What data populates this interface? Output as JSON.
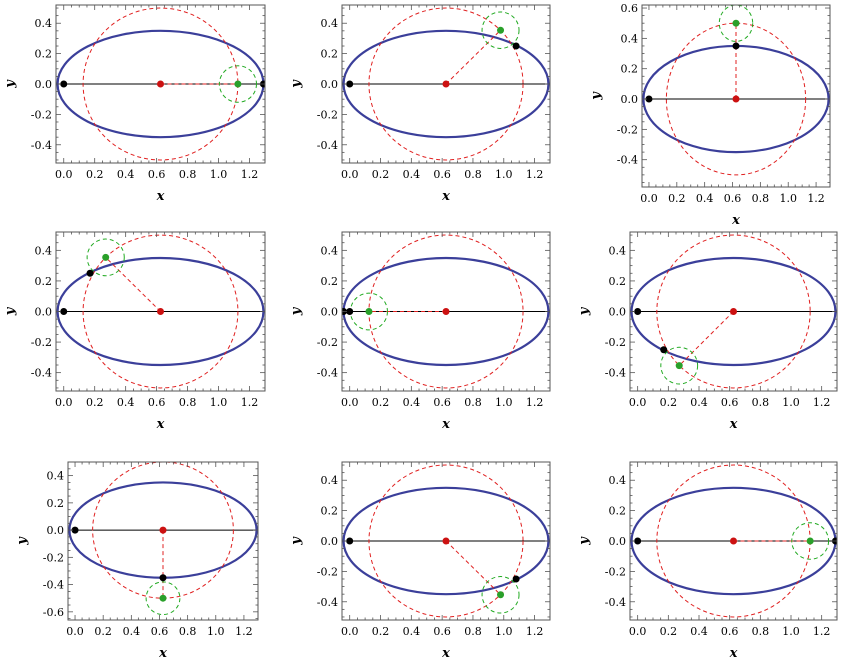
{
  "chart_data": {
    "type": "scatter",
    "description_of_content": "",
    "xlabel": "x",
    "ylabel": "y",
    "ellipse": {
      "center": [
        0.625,
        0.0
      ],
      "semi_axis_x": 0.665,
      "semi_axis_y": 0.35
    },
    "large_circle": {
      "center": [
        0.625,
        0.0
      ],
      "radius": 0.5
    },
    "small_circle_radius": 0.12,
    "colors": {
      "ellipse": "#3b3f9a",
      "large_circle": "#e02020",
      "small_circle": "#22aa22",
      "center_point": "#cc1111",
      "body_point": "#2aa02a",
      "axis_point": "#000000",
      "axis_line": "#000000"
    },
    "panels": [
      {
        "xlim": [
          -0.05,
          1.3
        ],
        "ylim": [
          -0.52,
          0.52
        ],
        "xticks": [
          "0.0",
          "0.2",
          "0.4",
          "0.6",
          "0.8",
          "1.0",
          "1.2"
        ],
        "yticks": [
          "-0.4",
          "-0.2",
          "0.0",
          "0.2",
          "0.4"
        ],
        "yvals": [
          -0.4,
          -0.2,
          0.0,
          0.2,
          0.4
        ],
        "green_point": [
          1.125,
          0.0
        ],
        "black_points": [
          [
            0.0,
            0.0
          ],
          [
            1.29,
            0.0
          ]
        ]
      },
      {
        "xlim": [
          -0.05,
          1.3
        ],
        "ylim": [
          -0.52,
          0.52
        ],
        "xticks": [
          "0.0",
          "0.2",
          "0.4",
          "0.6",
          "0.8",
          "1.0",
          "1.2"
        ],
        "yticks": [
          "-0.4",
          "-0.2",
          "0.0",
          "0.2",
          "0.4"
        ],
        "yvals": [
          -0.4,
          -0.2,
          0.0,
          0.2,
          0.4
        ],
        "green_point": [
          0.979,
          0.354
        ],
        "black_points": [
          [
            0.0,
            0.0
          ],
          [
            1.08,
            0.25
          ]
        ]
      },
      {
        "xlim": [
          -0.05,
          1.3
        ],
        "ylim": [
          -0.58,
          0.62
        ],
        "xticks": [
          "0.0",
          "0.2",
          "0.4",
          "0.6",
          "0.8",
          "1.0",
          "1.2"
        ],
        "yticks": [
          "-0.4",
          "-0.2",
          "0.0",
          "0.2",
          "0.4",
          "0.6"
        ],
        "yvals": [
          -0.4,
          -0.2,
          0.0,
          0.2,
          0.4,
          0.6
        ],
        "green_point": [
          0.625,
          0.5
        ],
        "black_points": [
          [
            0.0,
            0.0
          ],
          [
            0.625,
            0.35
          ]
        ]
      },
      {
        "xlim": [
          -0.05,
          1.3
        ],
        "ylim": [
          -0.52,
          0.52
        ],
        "xticks": [
          "0.0",
          "0.2",
          "0.4",
          "0.6",
          "0.8",
          "1.0",
          "1.2"
        ],
        "yticks": [
          "-0.4",
          "-0.2",
          "0.0",
          "0.2",
          "0.4"
        ],
        "yvals": [
          -0.4,
          -0.2,
          0.0,
          0.2,
          0.4
        ],
        "green_point": [
          0.271,
          0.354
        ],
        "black_points": [
          [
            0.0,
            0.0
          ],
          [
            0.17,
            0.25
          ]
        ]
      },
      {
        "xlim": [
          -0.05,
          1.3
        ],
        "ylim": [
          -0.52,
          0.52
        ],
        "xticks": [
          "0.0",
          "0.2",
          "0.4",
          "0.6",
          "0.8",
          "1.0",
          "1.2"
        ],
        "yticks": [
          "-0.4",
          "-0.2",
          "0.0",
          "0.2",
          "0.4"
        ],
        "yvals": [
          -0.4,
          -0.2,
          0.0,
          0.2,
          0.4
        ],
        "green_point": [
          0.125,
          0.0
        ],
        "black_points": [
          [
            -0.04,
            0.0
          ],
          [
            0.0,
            0.0
          ]
        ]
      },
      {
        "xlim": [
          -0.05,
          1.3
        ],
        "ylim": [
          -0.52,
          0.52
        ],
        "xticks": [
          "0.0",
          "0.2",
          "0.4",
          "0.6",
          "0.8",
          "1.0",
          "1.2"
        ],
        "yticks": [
          "-0.4",
          "-0.2",
          "0.0",
          "0.2",
          "0.4"
        ],
        "yvals": [
          -0.4,
          -0.2,
          0.0,
          0.2,
          0.4
        ],
        "green_point": [
          0.271,
          -0.354
        ],
        "black_points": [
          [
            0.0,
            0.0
          ],
          [
            0.17,
            -0.25
          ]
        ]
      },
      {
        "xlim": [
          -0.05,
          1.3
        ],
        "ylim": [
          -0.66,
          0.5
        ],
        "xticks": [
          "0.0",
          "0.2",
          "0.4",
          "0.6",
          "0.8",
          "1.0",
          "1.2"
        ],
        "yticks": [
          "-0.6",
          "-0.4",
          "-0.2",
          "0.0",
          "0.2",
          "0.4"
        ],
        "yvals": [
          -0.6,
          -0.4,
          -0.2,
          0.0,
          0.2,
          0.4
        ],
        "green_point": [
          0.625,
          -0.5
        ],
        "black_points": [
          [
            0.0,
            0.0
          ],
          [
            0.625,
            -0.35
          ]
        ]
      },
      {
        "xlim": [
          -0.05,
          1.3
        ],
        "ylim": [
          -0.52,
          0.52
        ],
        "xticks": [
          "0.0",
          "0.2",
          "0.4",
          "0.6",
          "0.8",
          "1.0",
          "1.2"
        ],
        "yticks": [
          "-0.4",
          "-0.2",
          "0.0",
          "0.2",
          "0.4"
        ],
        "yvals": [
          -0.4,
          -0.2,
          0.0,
          0.2,
          0.4
        ],
        "green_point": [
          0.979,
          -0.354
        ],
        "black_points": [
          [
            0.0,
            0.0
          ],
          [
            1.08,
            -0.25
          ]
        ]
      },
      {
        "xlim": [
          -0.05,
          1.3
        ],
        "ylim": [
          -0.52,
          0.52
        ],
        "xticks": [
          "0.0",
          "0.2",
          "0.4",
          "0.6",
          "0.8",
          "1.0",
          "1.2"
        ],
        "yticks": [
          "-0.4",
          "-0.2",
          "0.0",
          "0.2",
          "0.4"
        ],
        "yvals": [
          -0.4,
          -0.2,
          0.0,
          0.2,
          0.4
        ],
        "green_point": [
          1.125,
          0.0
        ],
        "black_points": [
          [
            0.0,
            0.0
          ],
          [
            1.29,
            0.0
          ]
        ]
      }
    ]
  }
}
